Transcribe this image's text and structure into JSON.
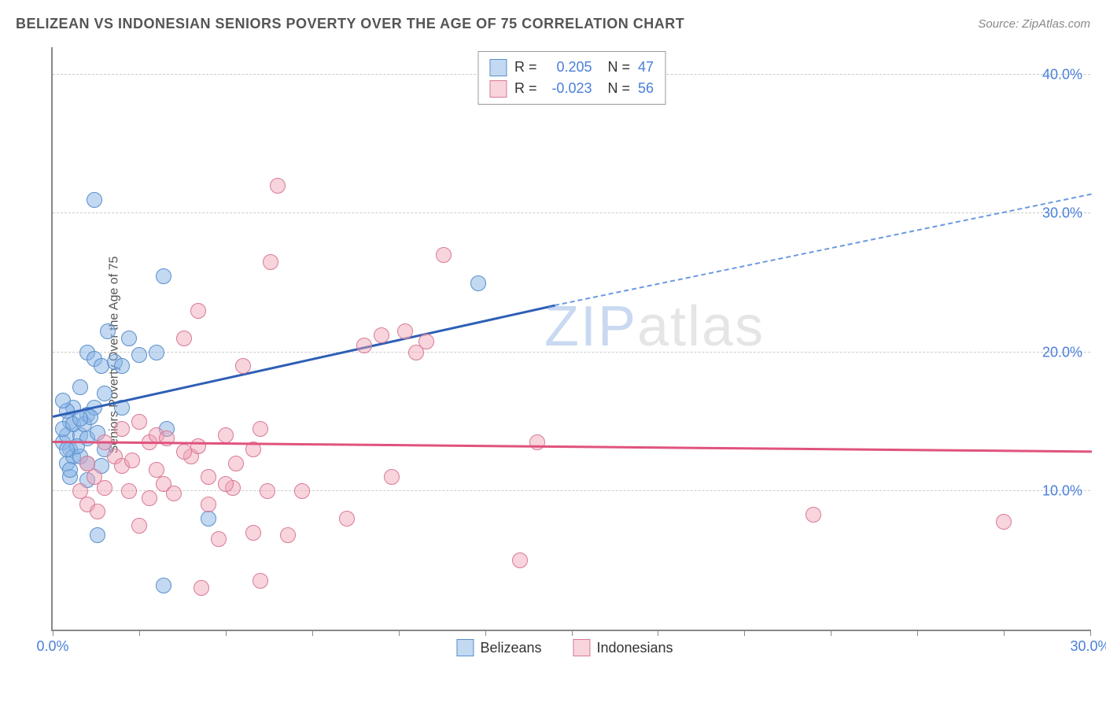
{
  "header": {
    "title": "BELIZEAN VS INDONESIAN SENIORS POVERTY OVER THE AGE OF 75 CORRELATION CHART",
    "source_prefix": "Source: ",
    "source_name": "ZipAtlas.com"
  },
  "y_axis_label": "Seniors Poverty Over the Age of 75",
  "watermark": {
    "part1": "ZIP",
    "part2": "atlas"
  },
  "chart": {
    "type": "scatter",
    "background_color": "#ffffff",
    "grid_color": "#cccccc",
    "axis_color": "#888888",
    "xlim": [
      0,
      30
    ],
    "ylim": [
      0,
      42
    ],
    "xticks": [
      0,
      2.5,
      5,
      7.5,
      10,
      12.5,
      15,
      17.5,
      20,
      22.5,
      25,
      27.5,
      30
    ],
    "xtick_labels": {
      "0": "0.0%",
      "30": "30.0%"
    },
    "yticks": [
      10,
      20,
      30,
      40
    ],
    "ytick_labels": {
      "10": "10.0%",
      "20": "20.0%",
      "30": "30.0%",
      "40": "40.0%"
    },
    "point_radius": 10,
    "point_border_width": 1.5,
    "series": [
      {
        "name": "Belizeans",
        "fill_color": "rgba(135, 180, 230, 0.5)",
        "border_color": "#5a8fca",
        "r_value": "0.205",
        "n_value": "47",
        "points": [
          [
            1.2,
            31.0
          ],
          [
            0.3,
            13.5
          ],
          [
            0.4,
            14.0
          ],
          [
            0.5,
            15.0
          ],
          [
            0.6,
            16.0
          ],
          [
            0.8,
            17.5
          ],
          [
            0.3,
            14.5
          ],
          [
            0.5,
            13.0
          ],
          [
            0.4,
            12.0
          ],
          [
            0.6,
            12.5
          ],
          [
            1.0,
            20.0
          ],
          [
            1.2,
            19.5
          ],
          [
            1.4,
            19.0
          ],
          [
            1.6,
            21.5
          ],
          [
            1.8,
            19.3
          ],
          [
            2.0,
            19.0
          ],
          [
            2.2,
            21.0
          ],
          [
            2.5,
            19.8
          ],
          [
            0.8,
            14.0
          ],
          [
            1.0,
            15.5
          ],
          [
            1.2,
            16.0
          ],
          [
            1.5,
            17.0
          ],
          [
            2.0,
            16.0
          ],
          [
            3.0,
            20.0
          ],
          [
            3.2,
            25.5
          ],
          [
            4.5,
            8.0
          ],
          [
            1.3,
            6.8
          ],
          [
            3.2,
            3.2
          ],
          [
            0.5,
            11.0
          ],
          [
            0.8,
            12.5
          ],
          [
            1.0,
            13.8
          ],
          [
            1.3,
            14.2
          ],
          [
            0.4,
            15.8
          ],
          [
            0.6,
            14.8
          ],
          [
            0.3,
            16.5
          ],
          [
            3.3,
            14.5
          ],
          [
            12.3,
            25.0
          ],
          [
            1.0,
            12.0
          ],
          [
            1.5,
            13.0
          ],
          [
            0.5,
            11.5
          ],
          [
            0.7,
            13.2
          ],
          [
            0.9,
            14.8
          ],
          [
            1.1,
            15.3
          ],
          [
            0.4,
            13.0
          ],
          [
            0.8,
            15.2
          ],
          [
            1.0,
            10.8
          ],
          [
            1.4,
            11.8
          ]
        ],
        "trend": {
          "x1": 0,
          "y1": 15.5,
          "x2": 14.5,
          "y2": 23.5,
          "color": "#2e5fb5"
        },
        "trend_dashed": {
          "x1": 14.5,
          "y1": 23.5,
          "x2": 30,
          "y2": 31.5,
          "color": "#6a9ae0"
        }
      },
      {
        "name": "Indonesians",
        "fill_color": "rgba(240, 160, 180, 0.45)",
        "border_color": "#d87a95",
        "r_value": "-0.023",
        "n_value": "56",
        "points": [
          [
            1.0,
            12.0
          ],
          [
            1.2,
            11.0
          ],
          [
            1.5,
            13.5
          ],
          [
            1.8,
            12.5
          ],
          [
            2.0,
            14.5
          ],
          [
            2.2,
            10.0
          ],
          [
            2.5,
            15.0
          ],
          [
            2.8,
            9.5
          ],
          [
            3.0,
            11.5
          ],
          [
            3.2,
            10.5
          ],
          [
            3.5,
            9.8
          ],
          [
            3.8,
            21.0
          ],
          [
            4.0,
            12.5
          ],
          [
            4.2,
            23.0
          ],
          [
            4.5,
            11.0
          ],
          [
            4.8,
            6.5
          ],
          [
            5.0,
            14.0
          ],
          [
            5.2,
            10.2
          ],
          [
            5.5,
            19.0
          ],
          [
            5.8,
            7.0
          ],
          [
            6.0,
            14.5
          ],
          [
            6.2,
            10.0
          ],
          [
            6.5,
            32.0
          ],
          [
            6.8,
            6.8
          ],
          [
            7.2,
            10.0
          ],
          [
            6.3,
            26.5
          ],
          [
            8.5,
            8.0
          ],
          [
            9.0,
            20.5
          ],
          [
            9.5,
            21.2
          ],
          [
            9.8,
            11.0
          ],
          [
            10.2,
            21.5
          ],
          [
            10.5,
            20.0
          ],
          [
            10.8,
            20.8
          ],
          [
            11.3,
            27.0
          ],
          [
            13.5,
            5.0
          ],
          [
            14.0,
            13.5
          ],
          [
            22.0,
            8.3
          ],
          [
            27.5,
            7.8
          ],
          [
            1.5,
            10.2
          ],
          [
            2.0,
            11.8
          ],
          [
            2.3,
            12.2
          ],
          [
            2.8,
            13.5
          ],
          [
            3.0,
            14.0
          ],
          [
            3.3,
            13.8
          ],
          [
            3.8,
            12.8
          ],
          [
            4.2,
            13.2
          ],
          [
            4.5,
            9.0
          ],
          [
            5.0,
            10.5
          ],
          [
            5.3,
            12.0
          ],
          [
            5.8,
            13.0
          ],
          [
            6.0,
            3.5
          ],
          [
            4.3,
            3.0
          ],
          [
            1.0,
            9.0
          ],
          [
            1.3,
            8.5
          ],
          [
            0.8,
            10.0
          ],
          [
            2.5,
            7.5
          ]
        ],
        "trend": {
          "x1": 0,
          "y1": 13.7,
          "x2": 30,
          "y2": 13.0,
          "color": "#e0537d"
        }
      }
    ]
  },
  "legend_top": {
    "r_label": "R =",
    "n_label": "N ="
  },
  "legend_bottom": {
    "items": [
      "Belizeans",
      "Indonesians"
    ]
  }
}
